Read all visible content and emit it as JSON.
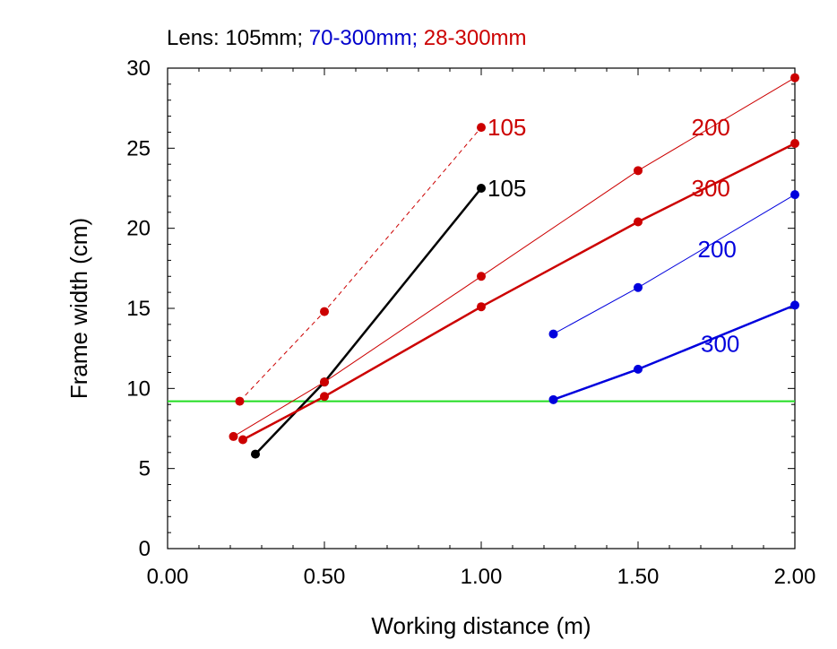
{
  "title": {
    "parts": [
      {
        "text": "Lens:  105mm;",
        "color": "#000000"
      },
      {
        "text": "70-300mm;",
        "color": "#0000cc"
      },
      {
        "text": "28-300mm",
        "color": "#cc0000"
      }
    ]
  },
  "chart_data": {
    "type": "line",
    "xlabel": "Working distance (m)",
    "ylabel": "Frame width (cm)",
    "xlim": [
      0,
      2
    ],
    "ylim": [
      0,
      30
    ],
    "x_ticks": [
      0,
      0.5,
      1,
      1.5,
      2
    ],
    "x_tick_labels": [
      "0.00",
      "0.50",
      "1.00",
      "1.50",
      "2.00"
    ],
    "y_ticks": [
      0,
      5,
      10,
      15,
      20,
      25,
      30
    ],
    "y_tick_labels": [
      "0",
      "5",
      "10",
      "15",
      "20",
      "25",
      "30"
    ],
    "grid": false,
    "legend": "none",
    "reference_line": {
      "y": 9.2,
      "color": "#22dd22"
    },
    "series": [
      {
        "label": "105",
        "color": "#cc0000",
        "style": "dashed",
        "width": 1,
        "x": [
          0.23,
          0.5,
          1.0
        ],
        "y": [
          9.2,
          14.8,
          26.3
        ]
      },
      {
        "label": "105",
        "color": "#000000",
        "style": "solid",
        "width": 2.5,
        "x": [
          0.28,
          0.5,
          1.0
        ],
        "y": [
          5.9,
          10.4,
          22.5
        ]
      },
      {
        "label": "200",
        "color": "#cc0000",
        "style": "solid",
        "width": 1,
        "x": [
          0.21,
          0.5,
          1.0,
          1.5,
          2.0
        ],
        "y": [
          7.0,
          10.4,
          17.0,
          23.6,
          29.4
        ]
      },
      {
        "label": "300",
        "color": "#cc0000",
        "style": "solid",
        "width": 2.5,
        "x": [
          0.24,
          0.5,
          1.0,
          1.5,
          2.0
        ],
        "y": [
          6.8,
          9.5,
          15.1,
          20.4,
          25.3
        ]
      },
      {
        "label": "200",
        "color": "#0000dd",
        "style": "solid",
        "width": 1,
        "x": [
          1.23,
          1.5,
          2.0
        ],
        "y": [
          13.4,
          16.3,
          22.1
        ]
      },
      {
        "label": "300",
        "color": "#0000dd",
        "style": "solid",
        "width": 2.5,
        "x": [
          1.23,
          1.5,
          2.0
        ],
        "y": [
          9.3,
          11.2,
          15.2
        ]
      }
    ],
    "annotations": [
      {
        "text": "105",
        "color": "#cc0000",
        "x": 1.02,
        "y": 26.3
      },
      {
        "text": "105",
        "color": "#000000",
        "x": 1.02,
        "y": 22.5
      },
      {
        "text": "200",
        "color": "#cc0000",
        "x": 1.67,
        "y": 26.3
      },
      {
        "text": "300",
        "color": "#cc0000",
        "x": 1.67,
        "y": 22.5
      },
      {
        "text": "200",
        "color": "#0000dd",
        "x": 1.69,
        "y": 18.7
      },
      {
        "text": "300",
        "color": "#0000dd",
        "x": 1.7,
        "y": 12.8
      }
    ]
  }
}
